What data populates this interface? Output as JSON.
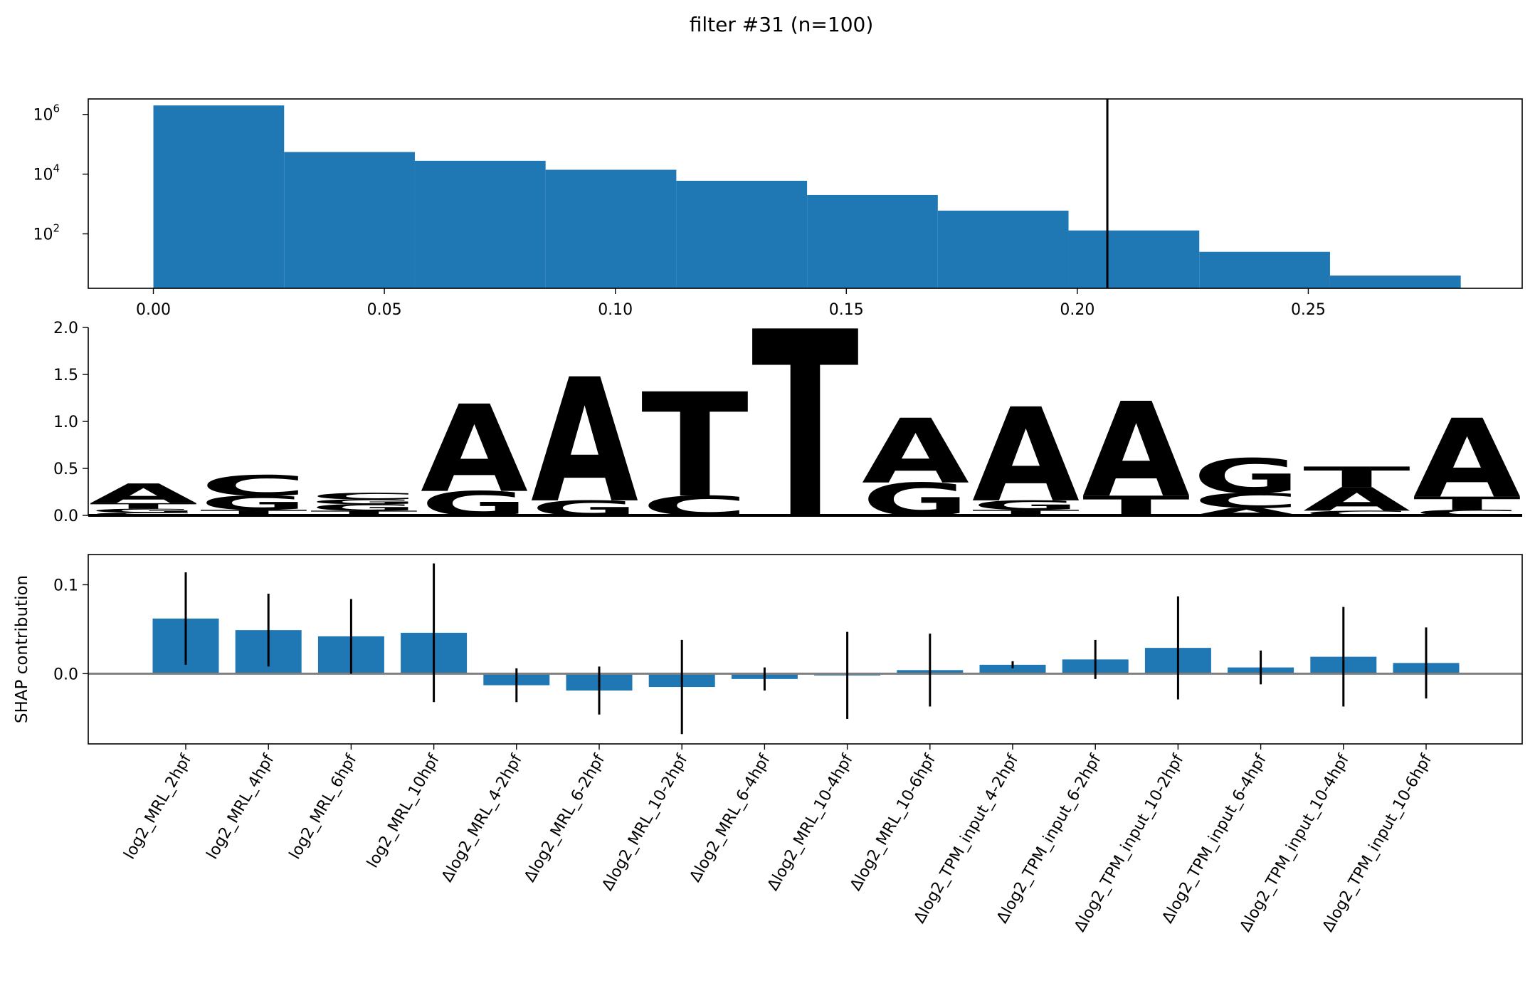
{
  "title": "filter #31 (n=100)",
  "chart_data": [
    {
      "type": "bar",
      "role": "histogram",
      "yscale": "log",
      "xlim": [
        -0.0141,
        0.2963
      ],
      "ylim": [
        1.5,
        3300000
      ],
      "xticks": [
        0.0,
        0.05,
        0.1,
        0.15,
        0.2,
        0.25
      ],
      "xtick_labels": [
        "0.00",
        "0.05",
        "0.10",
        "0.15",
        "0.20",
        "0.25"
      ],
      "yticks": [
        {
          "base": "10",
          "exp": "2",
          "value": 100
        },
        {
          "base": "10",
          "exp": "4",
          "value": 10000
        },
        {
          "base": "10",
          "exp": "6",
          "value": 1000000
        }
      ],
      "bin_edges": [
        0.0,
        0.0283,
        0.0566,
        0.0849,
        0.1132,
        0.1415,
        0.1698,
        0.1981,
        0.2264,
        0.2547,
        0.283
      ],
      "counts": [
        2000000,
        55000,
        28000,
        14000,
        6000,
        2000,
        600,
        130,
        25,
        4
      ],
      "threshold": 0.2065,
      "bar_color": "#1f77b4"
    },
    {
      "type": "sequence-logo",
      "ylim": [
        0,
        2.0
      ],
      "yticks": [
        "0.0",
        "0.5",
        "1.0",
        "1.5",
        "2.0"
      ],
      "letters": {
        "A": {
          "color": "#109648"
        },
        "C": {
          "color": "#255c99"
        },
        "G": {
          "color": "#f7b32b"
        },
        "T": {
          "color": "#e4263c"
        }
      },
      "positions": [
        [
          {
            "b": "C",
            "h": 0.03
          },
          {
            "b": "G",
            "h": 0.04
          },
          {
            "b": "T",
            "h": 0.06
          },
          {
            "b": "A",
            "h": 0.21
          }
        ],
        [
          {
            "b": "T",
            "h": 0.06
          },
          {
            "b": "G",
            "h": 0.15
          },
          {
            "b": "C",
            "h": 0.22
          }
        ],
        [
          {
            "b": "T",
            "h": 0.05
          },
          {
            "b": "G",
            "h": 0.07
          },
          {
            "b": "G",
            "h": 0.05
          },
          {
            "b": "C",
            "h": 0.07
          }
        ],
        [
          {
            "b": "G",
            "h": 0.26
          },
          {
            "b": "A",
            "h": 0.93
          }
        ],
        [
          {
            "b": "G",
            "h": 0.16
          },
          {
            "b": "A",
            "h": 1.32
          }
        ],
        [
          {
            "b": "C",
            "h": 0.21
          },
          {
            "b": "T",
            "h": 1.11
          }
        ],
        [
          {
            "b": "T",
            "h": 1.99
          }
        ],
        [
          {
            "b": "G",
            "h": 0.35
          },
          {
            "b": "A",
            "h": 0.69
          }
        ],
        [
          {
            "b": "T",
            "h": 0.06
          },
          {
            "b": "G",
            "h": 0.1
          },
          {
            "b": "A",
            "h": 1.0
          }
        ],
        [
          {
            "b": "T",
            "h": 0.21
          },
          {
            "b": "A",
            "h": 1.01
          }
        ],
        [
          {
            "b": "A",
            "h": 0.08
          },
          {
            "b": "C",
            "h": 0.16
          },
          {
            "b": "G",
            "h": 0.37
          }
        ],
        [
          {
            "b": "C",
            "h": 0.05
          },
          {
            "b": "A",
            "h": 0.25
          },
          {
            "b": "T",
            "h": 0.22
          }
        ],
        [
          {
            "b": "C",
            "h": 0.06
          },
          {
            "b": "T",
            "h": 0.14
          },
          {
            "b": "A",
            "h": 0.84
          }
        ]
      ]
    },
    {
      "type": "bar",
      "role": "shap",
      "ylabel": "SHAP contribution",
      "ylim": [
        -0.079,
        0.134
      ],
      "yticks": [
        0.0,
        0.1
      ],
      "ytick_labels": [
        "0.0",
        "0.1"
      ],
      "categories": [
        "log2_MRL_2hpf",
        "log2_MRL_4hpf",
        "log2_MRL_6hpf",
        "log2_MRL_10hpf",
        "Δlog2_MRL_4-2hpf",
        "Δlog2_MRL_6-2hpf",
        "Δlog2_MRL_10-2hpf",
        "Δlog2_MRL_6-4hpf",
        "Δlog2_MRL_10-4hpf",
        "Δlog2_MRL_10-6hpf",
        "Δlog2_TPM_input_4-2hpf",
        "Δlog2_TPM_input_6-2hpf",
        "Δlog2_TPM_input_10-2hpf",
        "Δlog2_TPM_input_6-4hpf",
        "Δlog2_TPM_input_10-4hpf",
        "Δlog2_TPM_input_10-6hpf"
      ],
      "values": [
        0.062,
        0.049,
        0.042,
        0.046,
        -0.013,
        -0.019,
        -0.015,
        -0.006,
        -0.002,
        0.004,
        0.01,
        0.016,
        0.029,
        0.007,
        0.019,
        0.012
      ],
      "errors": [
        0.052,
        0.041,
        0.042,
        0.078,
        0.019,
        0.027,
        0.053,
        0.013,
        0.049,
        0.041,
        0.004,
        0.022,
        0.058,
        0.019,
        0.056,
        0.04
      ],
      "bar_color": "#1f77b4",
      "zero_line_color": "#808080"
    }
  ]
}
